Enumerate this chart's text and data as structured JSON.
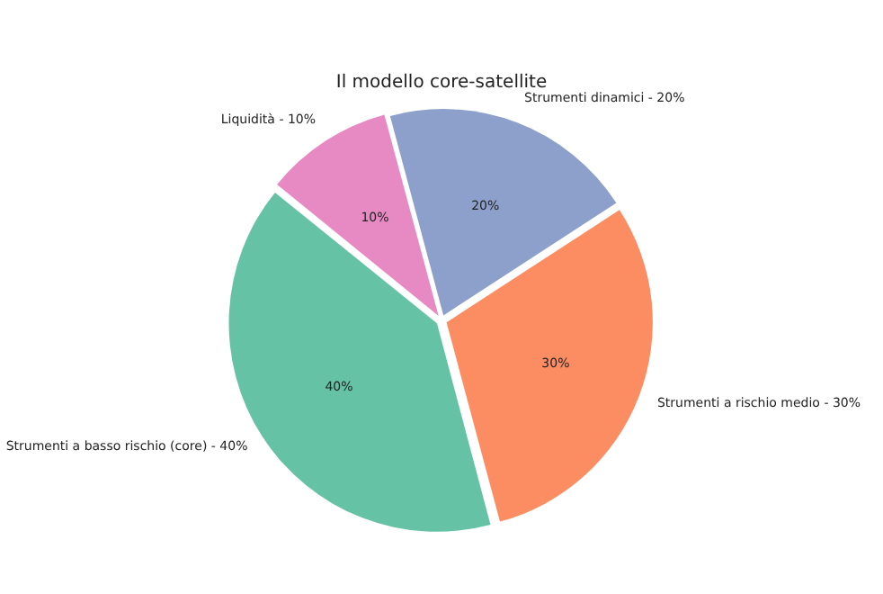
{
  "chart_data": {
    "type": "pie",
    "title": "Il modello core-satellite",
    "categories": [
      "Strumenti dinamici - 20%",
      "Strumenti a rischio medio - 30%",
      "Strumenti a basso rischio (core) - 40%",
      "Liquidità - 10%"
    ],
    "values": [
      20,
      30,
      40,
      10
    ],
    "value_labels": [
      "20%",
      "30%",
      "40%",
      "10%"
    ],
    "colors": [
      "#8da0cb",
      "#fc8d62",
      "#66c2a5",
      "#e78ac3"
    ],
    "legend": false
  }
}
